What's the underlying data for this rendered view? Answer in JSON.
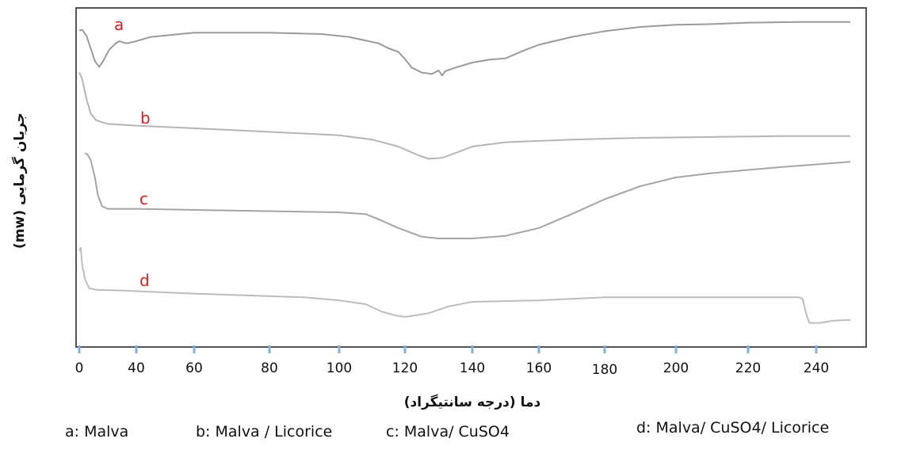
{
  "chart_data": {
    "type": "line",
    "xlabel": "دما (درجه سانتیگراد)",
    "ylabel": "جریان گرمایی (mw)",
    "x_ticks": [
      "0",
      "40",
      "60",
      "80",
      "100",
      "120",
      "140",
      "160",
      "180",
      "200",
      "220",
      "240"
    ],
    "series": [
      {
        "label": "a",
        "legend": "a: Malva",
        "color": "#9a9a9a",
        "points": [
          [
            0,
            0.85
          ],
          [
            2,
            0.86
          ],
          [
            5,
            0.78
          ],
          [
            8,
            0.6
          ],
          [
            11,
            0.42
          ],
          [
            14,
            0.34
          ],
          [
            17,
            0.43
          ],
          [
            21,
            0.58
          ],
          [
            25,
            0.66
          ],
          [
            28,
            0.7
          ],
          [
            33,
            0.67
          ],
          [
            38,
            0.69
          ],
          [
            45,
            0.76
          ],
          [
            60,
            0.82
          ],
          [
            80,
            0.82
          ],
          [
            95,
            0.8
          ],
          [
            103,
            0.76
          ],
          [
            108,
            0.71
          ],
          [
            112,
            0.67
          ],
          [
            115,
            0.6
          ],
          [
            118,
            0.55
          ],
          [
            120,
            0.45
          ],
          [
            122,
            0.33
          ],
          [
            125,
            0.26
          ],
          [
            128,
            0.24
          ],
          [
            130,
            0.29
          ],
          [
            131,
            0.22
          ],
          [
            132,
            0.28
          ],
          [
            135,
            0.33
          ],
          [
            140,
            0.4
          ],
          [
            145,
            0.44
          ],
          [
            150,
            0.46
          ],
          [
            155,
            0.56
          ],
          [
            160,
            0.65
          ],
          [
            170,
            0.76
          ],
          [
            180,
            0.84
          ],
          [
            190,
            0.9
          ],
          [
            200,
            0.93
          ],
          [
            210,
            0.94
          ],
          [
            220,
            0.96
          ],
          [
            235,
            0.97
          ],
          [
            250,
            0.97
          ]
        ]
      },
      {
        "label": "b",
        "legend": "b: Malva / Licorice",
        "color": "#b5b5b5",
        "points": [
          [
            0,
            0.85
          ],
          [
            2,
            0.78
          ],
          [
            5,
            0.55
          ],
          [
            8,
            0.38
          ],
          [
            12,
            0.3
          ],
          [
            20,
            0.26
          ],
          [
            40,
            0.24
          ],
          [
            70,
            0.19
          ],
          [
            100,
            0.13
          ],
          [
            110,
            0.08
          ],
          [
            118,
            0.0
          ],
          [
            124,
            -0.1
          ],
          [
            127,
            -0.14
          ],
          [
            131,
            -0.13
          ],
          [
            136,
            -0.06
          ],
          [
            140,
            0.0
          ],
          [
            150,
            0.05
          ],
          [
            170,
            0.08
          ],
          [
            190,
            0.1
          ],
          [
            210,
            0.11
          ],
          [
            230,
            0.12
          ],
          [
            250,
            0.12
          ]
        ]
      },
      {
        "label": "c",
        "legend": "c: Malva/ CuSO4",
        "color": "#a5a5a5",
        "points": [
          [
            4,
            0.88
          ],
          [
            6,
            0.86
          ],
          [
            8,
            0.8
          ],
          [
            11,
            0.6
          ],
          [
            13,
            0.4
          ],
          [
            16,
            0.27
          ],
          [
            20,
            0.24
          ],
          [
            40,
            0.24
          ],
          [
            70,
            0.22
          ],
          [
            100,
            0.2
          ],
          [
            108,
            0.18
          ],
          [
            112,
            0.12
          ],
          [
            118,
            0.02
          ],
          [
            125,
            -0.08
          ],
          [
            130,
            -0.1
          ],
          [
            140,
            -0.1
          ],
          [
            150,
            -0.07
          ],
          [
            160,
            0.02
          ],
          [
            170,
            0.18
          ],
          [
            180,
            0.35
          ],
          [
            190,
            0.5
          ],
          [
            200,
            0.6
          ],
          [
            210,
            0.65
          ],
          [
            230,
            0.72
          ],
          [
            250,
            0.78
          ]
        ]
      },
      {
        "label": "d",
        "legend": "d: Malva/ CuSO4/ Licorice",
        "color": "#bdbdbd",
        "points": [
          [
            0,
            0.88
          ],
          [
            1,
            0.92
          ],
          [
            2,
            0.7
          ],
          [
            4,
            0.5
          ],
          [
            7,
            0.38
          ],
          [
            12,
            0.36
          ],
          [
            30,
            0.35
          ],
          [
            60,
            0.31
          ],
          [
            90,
            0.26
          ],
          [
            100,
            0.22
          ],
          [
            108,
            0.17
          ],
          [
            113,
            0.07
          ],
          [
            117,
            0.02
          ],
          [
            120,
            0.0
          ],
          [
            123,
            0.02
          ],
          [
            127,
            0.05
          ],
          [
            133,
            0.14
          ],
          [
            140,
            0.2
          ],
          [
            160,
            0.22
          ],
          [
            180,
            0.26
          ],
          [
            210,
            0.26
          ],
          [
            235,
            0.26
          ],
          [
            236,
            0.24
          ],
          [
            237,
            0.05
          ],
          [
            238,
            -0.08
          ],
          [
            241,
            -0.08
          ],
          [
            245,
            -0.05
          ],
          [
            250,
            -0.04
          ]
        ]
      }
    ]
  }
}
